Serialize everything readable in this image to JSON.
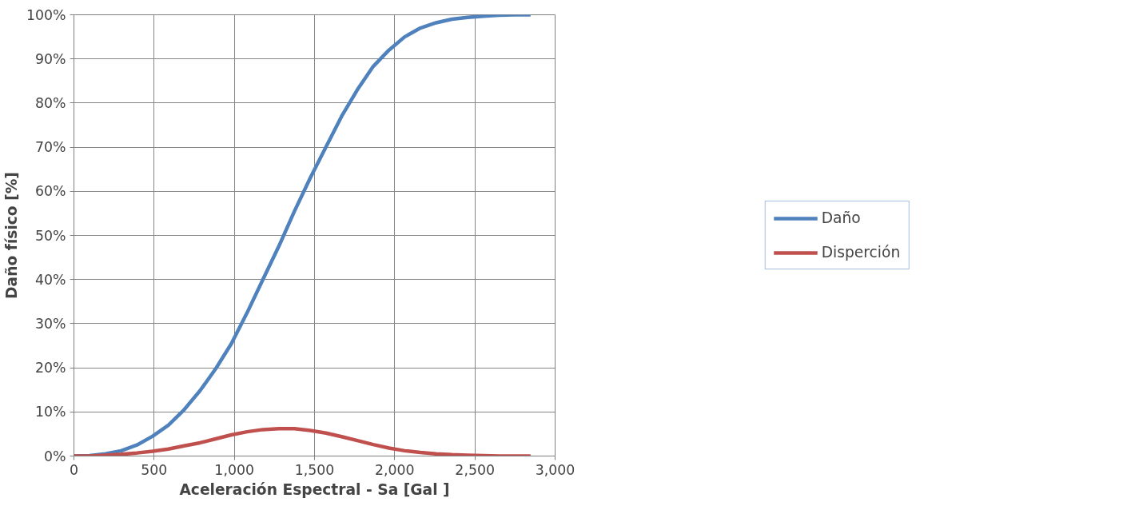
{
  "chart_data": {
    "type": "line",
    "xlabel": "Aceleración Espectral - Sa [Gal ]",
    "ylabel": "Daño físico [%]",
    "x": [
      0,
      98,
      196,
      295,
      393,
      491,
      589,
      687,
      786,
      884,
      982,
      1080,
      1178,
      1277,
      1375,
      1473,
      1571,
      1669,
      1767,
      1866,
      1964,
      2062,
      2160,
      2258,
      2357,
      2455,
      2553,
      2651,
      2749,
      2847
    ],
    "series": [
      {
        "name": "Daño",
        "color": "#4f81bd",
        "values": [
          0,
          0.1,
          0.5,
          1.2,
          2.5,
          4.5,
          7,
          10.5,
          14.8,
          19.8,
          25.5,
          32.5,
          40,
          47.5,
          55.5,
          63,
          70,
          77,
          83,
          88.3,
          92,
          95,
          97,
          98.2,
          99,
          99.4,
          99.7,
          99.9,
          100,
          100
        ]
      },
      {
        "name": "Disperción",
        "color": "#c0504d",
        "values": [
          0,
          0,
          0.2,
          0.4,
          0.7,
          1.1,
          1.6,
          2.3,
          3,
          3.9,
          4.8,
          5.5,
          6,
          6.2,
          6.2,
          5.8,
          5.2,
          4.4,
          3.5,
          2.6,
          1.8,
          1.2,
          0.8,
          0.5,
          0.3,
          0.2,
          0.1,
          0,
          0,
          0
        ]
      }
    ],
    "xlim": [
      0,
      3000
    ],
    "ylim": [
      0,
      100
    ],
    "xticks": [
      0,
      500,
      {
        "value": 1000,
        "label": "1,000"
      },
      {
        "value": 1500,
        "label": "1,500"
      },
      {
        "value": 2000,
        "label": "2,000"
      },
      {
        "value": 2500,
        "label": "2,500"
      },
      {
        "value": 3000,
        "label": "3,000"
      }
    ],
    "yticks": [
      {
        "value": 0,
        "label": "0%"
      },
      {
        "value": 10,
        "label": "10%"
      },
      {
        "value": 20,
        "label": "20%"
      },
      {
        "value": 30,
        "label": "30%"
      },
      {
        "value": 40,
        "label": "40%"
      },
      {
        "value": 50,
        "label": "50%"
      },
      {
        "value": 60,
        "label": "60%"
      },
      {
        "value": 70,
        "label": "70%"
      },
      {
        "value": 80,
        "label": "80%"
      },
      {
        "value": 90,
        "label": "90%"
      },
      {
        "value": 100,
        "label": "100%"
      }
    ],
    "grid": true,
    "legend": "right",
    "marker": "none",
    "line_style": "solid"
  }
}
